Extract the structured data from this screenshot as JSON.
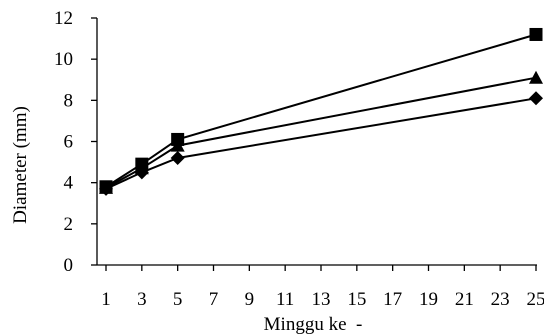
{
  "chart_data": {
    "type": "line",
    "title": "",
    "xlabel": "Minggu ke  -",
    "ylabel": "Diameter (mm)",
    "xlim": [
      1,
      25
    ],
    "ylim": [
      0,
      12
    ],
    "x_ticks": [
      1,
      3,
      5,
      7,
      9,
      11,
      13,
      15,
      17,
      19,
      21,
      23,
      25
    ],
    "y_ticks": [
      0,
      2,
      4,
      6,
      8,
      10,
      12
    ],
    "grid": false,
    "legend": "none",
    "series": [
      {
        "marker": "square",
        "x": [
          1,
          3,
          5,
          25
        ],
        "values": [
          3.8,
          4.9,
          6.1,
          11.2
        ]
      },
      {
        "marker": "triangle",
        "x": [
          1,
          3,
          5,
          25
        ],
        "values": [
          3.75,
          4.7,
          5.8,
          9.1
        ]
      },
      {
        "marker": "diamond",
        "x": [
          1,
          3,
          5,
          25
        ],
        "values": [
          3.7,
          4.5,
          5.2,
          8.1
        ]
      }
    ],
    "line_color": "#000000",
    "marker_color": "#000000"
  }
}
